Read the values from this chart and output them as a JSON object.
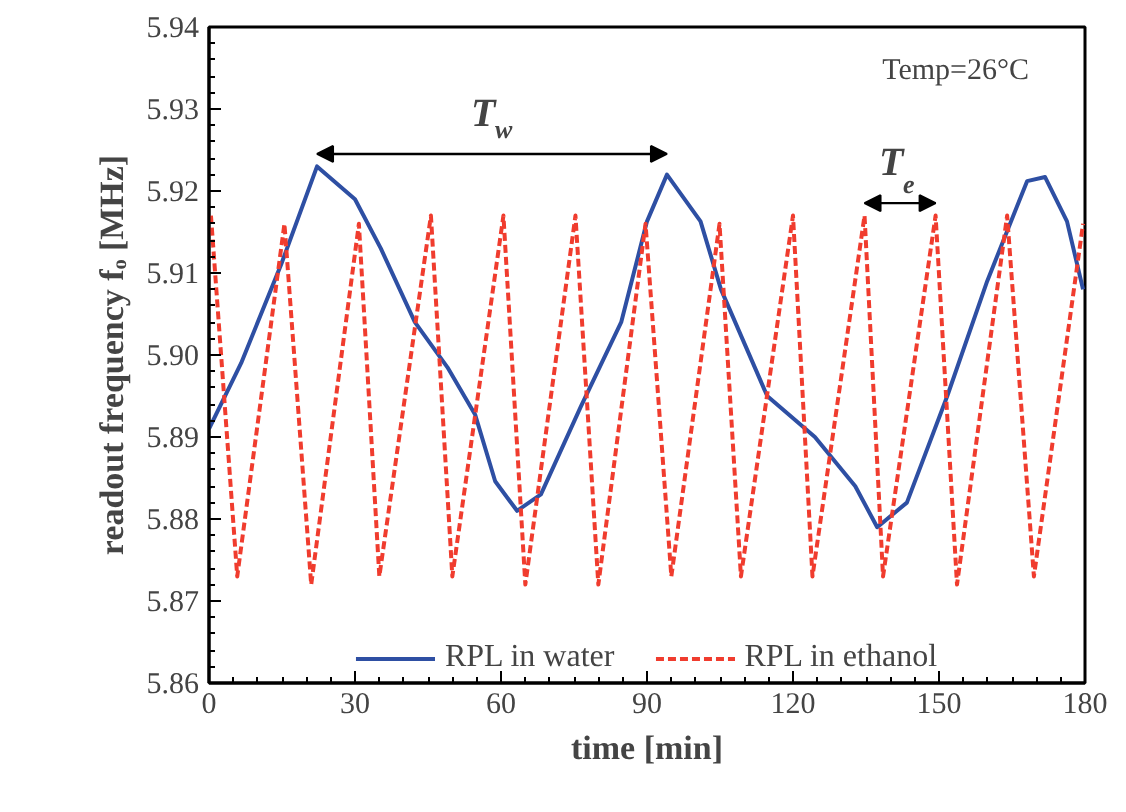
{
  "chart_data": {
    "type": "line",
    "xlabel": "time [min]",
    "ylabel": "readout frequency fₒ [MHz]",
    "xlim": [
      0,
      180
    ],
    "xticks": [
      0,
      30,
      60,
      90,
      120,
      150,
      180
    ],
    "ylim": [
      5.86,
      5.94
    ],
    "yticks": [
      5.86,
      5.87,
      5.88,
      5.89,
      {
        "value": 5.9,
        "label": "5.90"
      },
      5.91,
      5.92,
      5.93,
      5.94
    ],
    "grid": false,
    "legend": "bottom",
    "marker": "none",
    "series": [
      {
        "name": "RPL in water",
        "color": "#2e4fa3",
        "line_style": "solid",
        "x": [
          0,
          6.6,
          14.8,
          22.2,
          30,
          35.3,
          42.3,
          49,
          54.7,
          58.8,
          63.3,
          68.2,
          76.4,
          84.7,
          90,
          94.1,
          101,
          105.2,
          114.7,
          124.5,
          132.8,
          137.3,
          143.4,
          151.7,
          159.9,
          168.1,
          171.8,
          176.3,
          179.6
        ],
        "values": [
          5.891,
          5.899,
          5.911,
          5.923,
          5.919,
          5.913,
          5.904,
          5.8985,
          5.8927,
          5.8846,
          5.881,
          5.883,
          5.8937,
          5.904,
          5.9163,
          5.922,
          5.9163,
          5.908,
          5.895,
          5.89,
          5.884,
          5.879,
          5.882,
          5.895,
          5.909,
          5.9212,
          5.9217,
          5.9163,
          5.908
        ]
      },
      {
        "name": "RPL in ethanol",
        "color": "#f03c2e",
        "line_style": "dashed",
        "x": [
          0.4,
          5.8,
          15.5,
          21,
          30.8,
          35,
          45.6,
          50,
          60.5,
          65,
          75.3,
          80,
          89.7,
          95,
          104.9,
          109.3,
          120,
          124,
          134.7,
          138.5,
          149.3,
          153.7,
          164,
          169.5,
          179.6
        ],
        "values": [
          5.917,
          5.873,
          5.916,
          5.872,
          5.916,
          5.873,
          5.917,
          5.873,
          5.917,
          5.872,
          5.917,
          5.872,
          5.916,
          5.873,
          5.916,
          5.873,
          5.917,
          5.873,
          5.917,
          5.873,
          5.917,
          5.872,
          5.917,
          5.873,
          5.916
        ]
      }
    ],
    "annotations": [
      "T$_{w}$",
      "T$_{e}$",
      "Temp=26°C"
    ]
  }
}
